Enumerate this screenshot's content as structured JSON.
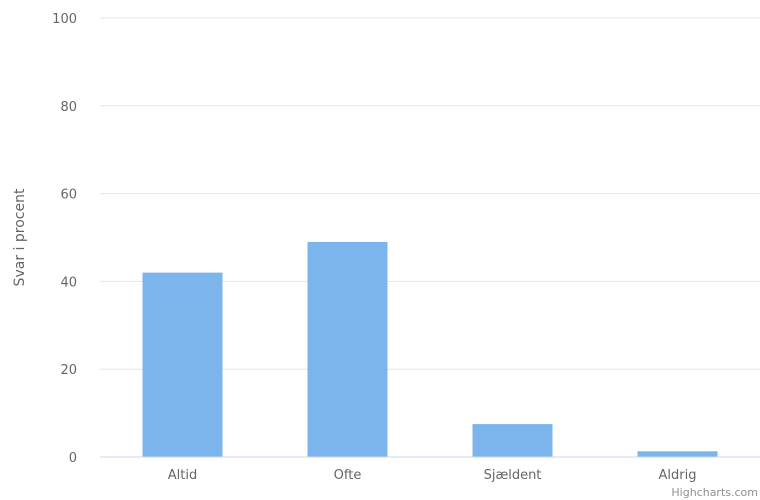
{
  "chart_data": {
    "type": "bar",
    "categories": [
      "Altid",
      "Ofte",
      "Sjældent",
      "Aldrig"
    ],
    "values": [
      42,
      49,
      7.5,
      1.3
    ],
    "ylabel": "Svar i procent",
    "ylim": [
      0,
      100
    ],
    "yticks": [
      0,
      20,
      40,
      60,
      80,
      100
    ],
    "grid": true,
    "bar_color": "#7cb5ec",
    "grid_color": "#e6e6e6",
    "axis_color": "#ccd6eb"
  },
  "credits": "Highcharts.com"
}
